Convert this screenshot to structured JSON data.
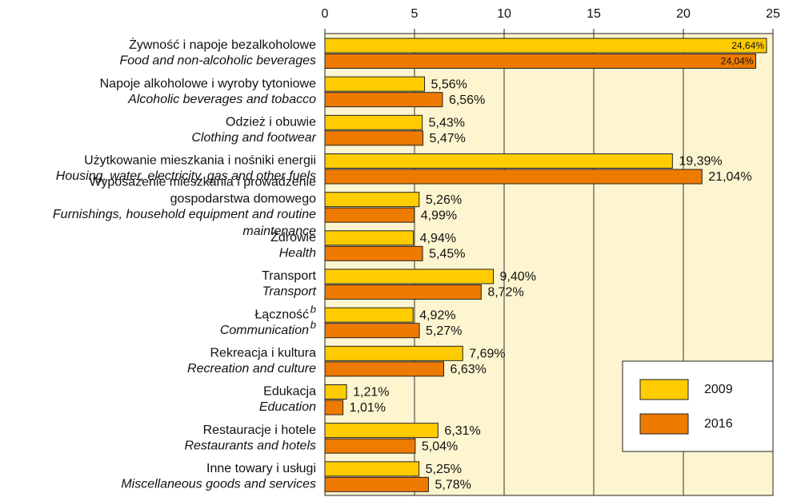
{
  "chart_data": {
    "type": "barh",
    "categories": [
      "Żywność i napoje bezalkoholowe",
      "Napoje alkoholowe i wyroby tytoniowe",
      "Odzież i obuwie",
      "Użytkowanie mieszkania i nośniki energii",
      "Wyposażenie mieszkania i prowadzenie\ngospodarstwa domowego",
      "Zdrowie",
      "Transport",
      "Łączność",
      "Rekreacja i kultura",
      "Edukacja",
      "Restauracje i hotele",
      "Inne towary i usługi"
    ],
    "categories_en": [
      "Food and non-alcoholic beverages",
      "Alcoholic beverages and tobacco",
      "Clothing and footwear",
      "Housing, water, electricity, gas and other fuels",
      "Furnishings, household equipment and routine\nmaintenance",
      "Health",
      "Transport",
      "Communication",
      "Recreation and culture",
      "Education",
      "Restaurants and hotels",
      "Miscellaneous goods and services"
    ],
    "category_notes": [
      null,
      null,
      null,
      null,
      null,
      null,
      null,
      "b",
      null,
      null,
      null,
      null
    ],
    "series": [
      {
        "name": "2009",
        "color": "#ffcc00",
        "values": [
          24.64,
          5.56,
          5.43,
          19.39,
          5.26,
          4.94,
          9.4,
          4.92,
          7.69,
          1.21,
          6.31,
          5.25
        ],
        "value_labels": [
          "24,64%",
          "5,56%",
          "5,43%",
          "19,39%",
          "5,26%",
          "4,94%",
          "9,40%",
          "4,92%",
          "7,69%",
          "1,21%",
          "6,31%",
          "5,25%"
        ]
      },
      {
        "name": "2016",
        "color": "#ee7a00",
        "values": [
          24.04,
          6.56,
          5.47,
          21.04,
          4.99,
          5.45,
          8.72,
          5.27,
          6.63,
          1.01,
          5.04,
          5.78
        ],
        "value_labels": [
          "24,04%",
          "6,56%",
          "5,47%",
          "21,04%",
          "4,99%",
          "5,45%",
          "8,72%",
          "5,27%",
          "6,63%",
          "1,01%",
          "5,04%",
          "5,78%"
        ]
      }
    ],
    "xlim": [
      0,
      25
    ],
    "xticks": [
      0,
      5,
      10,
      15,
      20,
      25
    ],
    "grid": true,
    "legend": "lower right"
  }
}
